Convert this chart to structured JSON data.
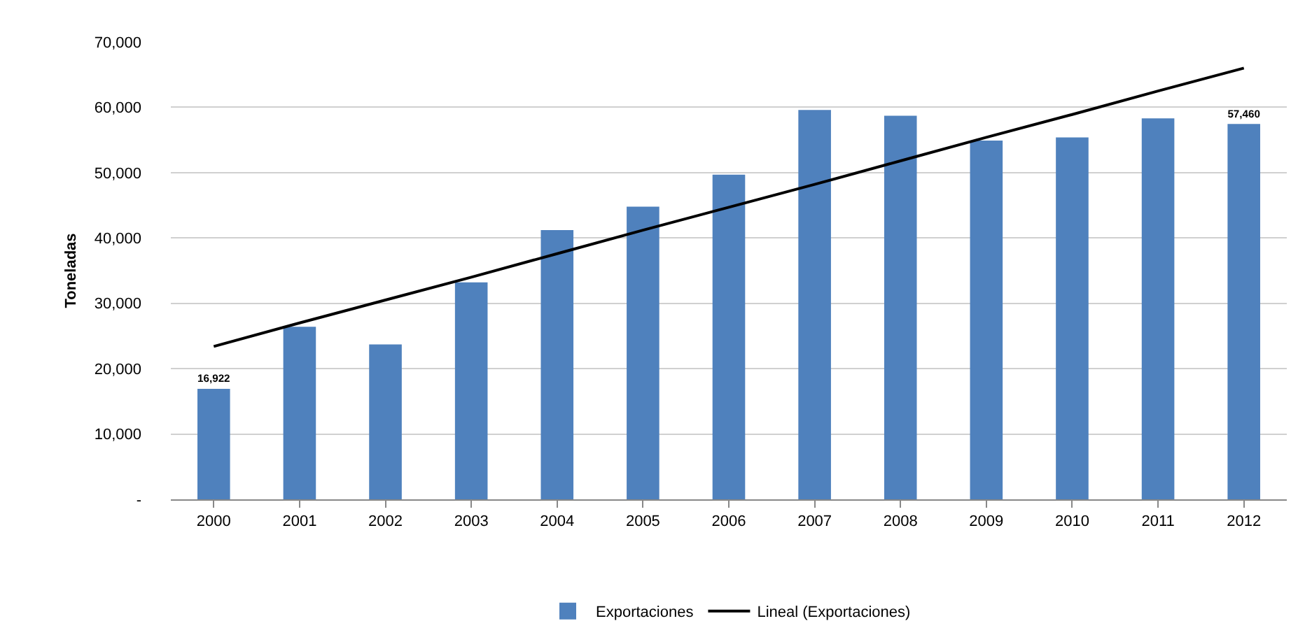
{
  "chart_data": {
    "type": "bar",
    "ylabel": "Toneladas",
    "categories": [
      "2000",
      "2001",
      "2002",
      "2003",
      "2004",
      "2005",
      "2006",
      "2007",
      "2008",
      "2009",
      "2010",
      "2011",
      "2012"
    ],
    "series": [
      {
        "name": "Exportaciones",
        "color": "#4f81bd",
        "values": [
          16922,
          26400,
          23700,
          33200,
          41200,
          44800,
          49700,
          59600,
          58700,
          54900,
          55400,
          58300,
          57460
        ],
        "value_labels": [
          "16,922",
          null,
          null,
          null,
          null,
          null,
          null,
          null,
          null,
          null,
          null,
          null,
          "57,460"
        ]
      },
      {
        "name": "Lineal (Exportaciones)",
        "type": "line",
        "color": "#000000",
        "values": [
          23400,
          27000,
          30500,
          34000,
          37600,
          41200,
          44700,
          48200,
          51800,
          55400,
          58900,
          62500,
          66000
        ]
      }
    ],
    "ylim": [
      0,
      70000
    ],
    "yticks": [
      {
        "value": 0,
        "label": "-"
      },
      {
        "value": 10000,
        "label": "10,000"
      },
      {
        "value": 20000,
        "label": "20,000"
      },
      {
        "value": 30000,
        "label": "30,000"
      },
      {
        "value": 40000,
        "label": "40,000"
      },
      {
        "value": 50000,
        "label": "50,000"
      },
      {
        "value": 60000,
        "label": "60,000"
      },
      {
        "value": 70000,
        "label": "70,000"
      }
    ],
    "grid": "y",
    "legend": "bottom",
    "marker": "none",
    "line_style": "solid"
  }
}
